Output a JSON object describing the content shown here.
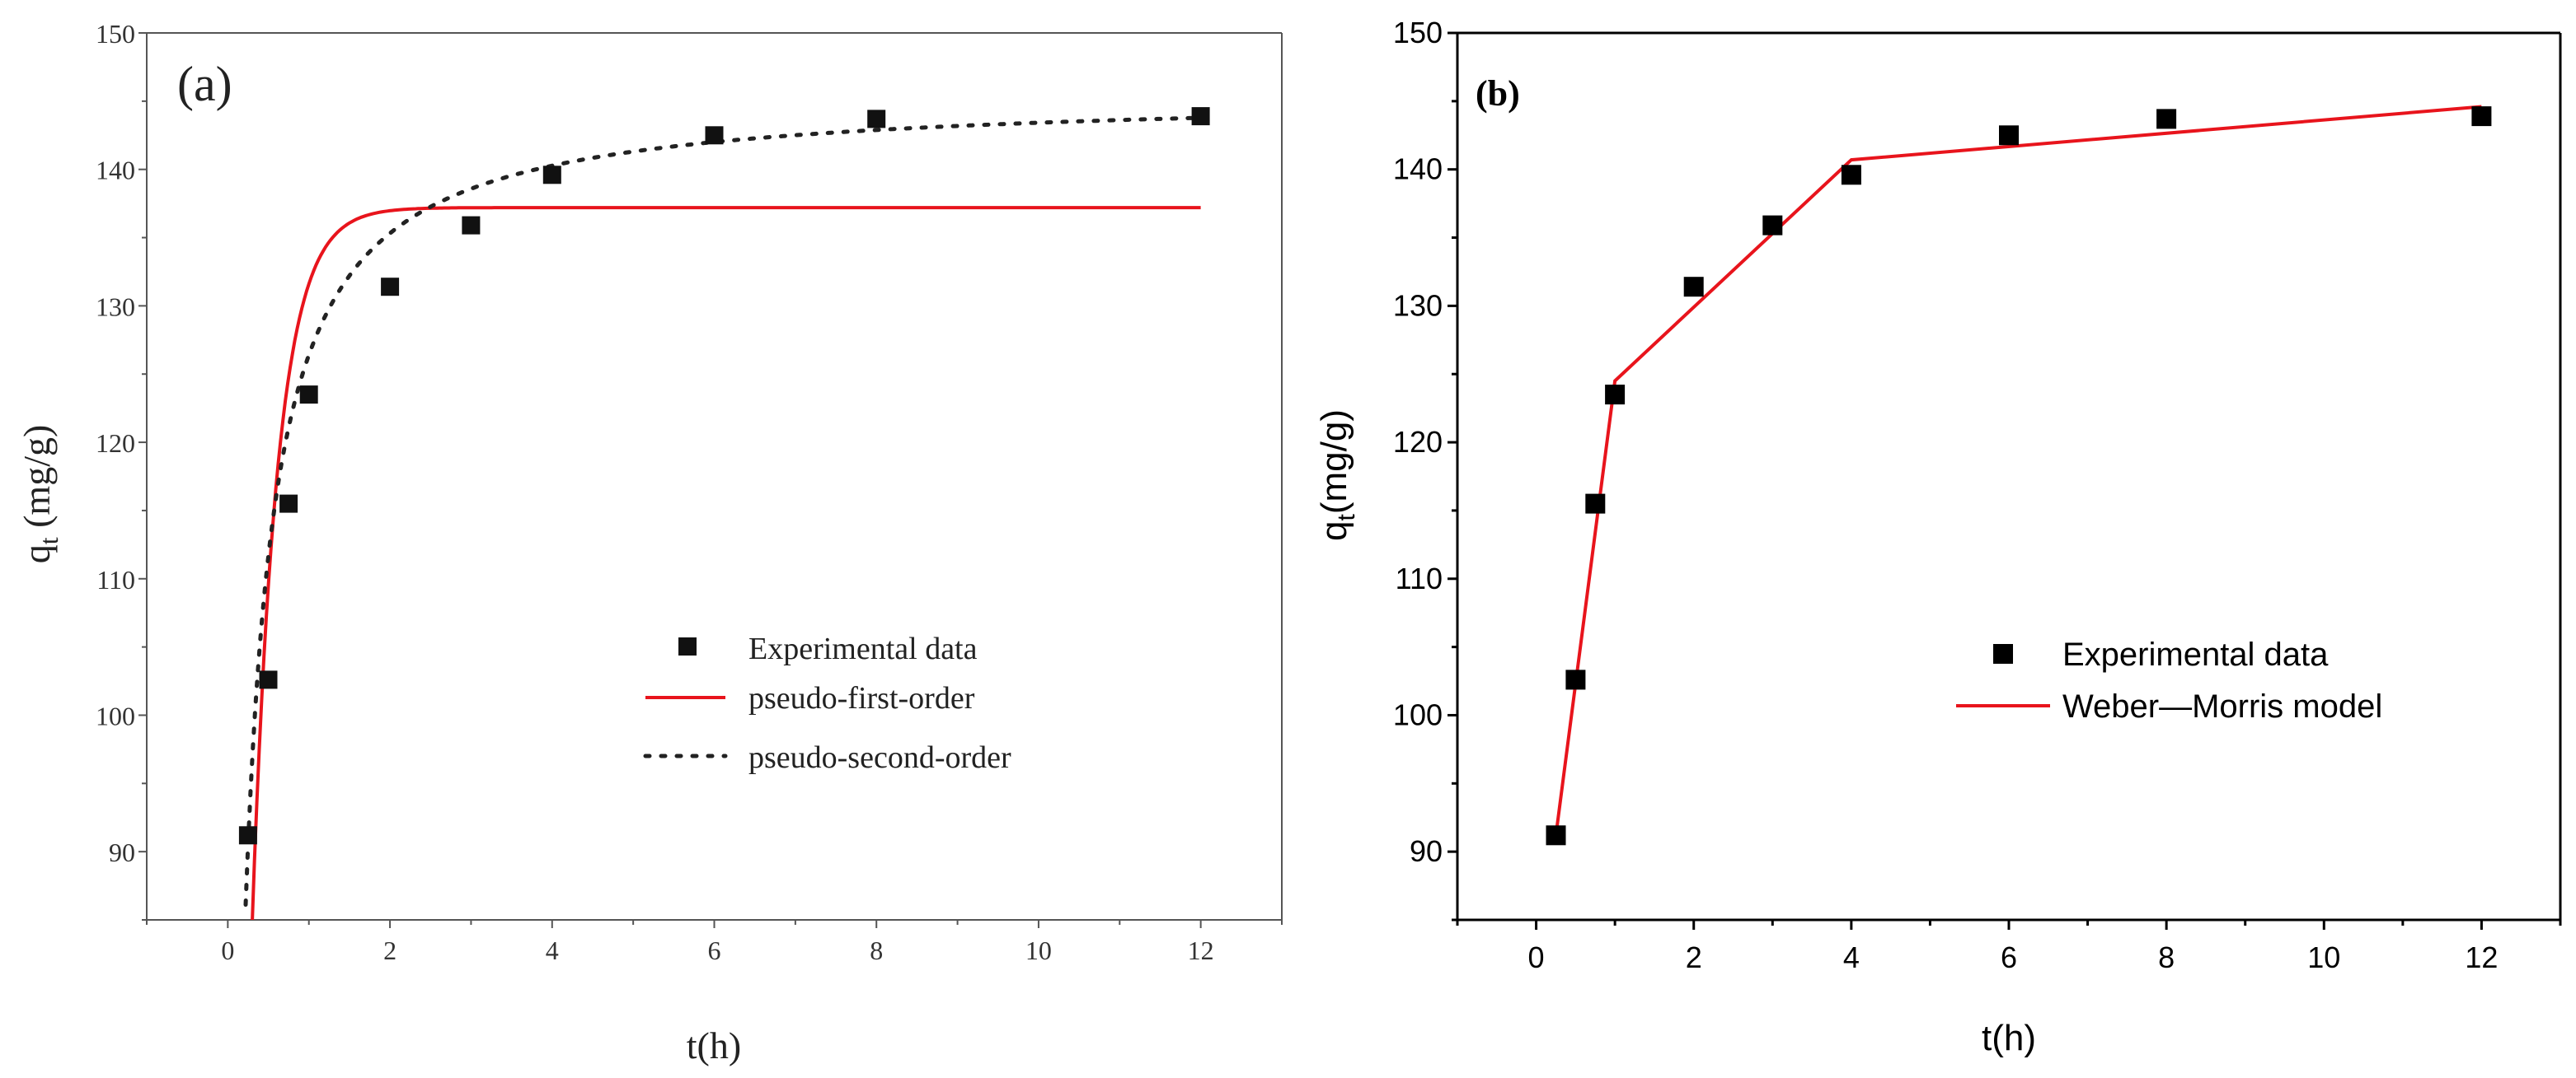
{
  "chart_data": [
    {
      "type": "scatter",
      "panel_label": "(a)",
      "xlabel": "t(h)",
      "ylabel": "q",
      "ylabel_sub": "t",
      "ylabel_unit": " (mg/g)",
      "xlim": [
        -1,
        13
      ],
      "ylim": [
        85,
        150
      ],
      "xticks": [
        0,
        2,
        4,
        6,
        8,
        10,
        12
      ],
      "yticks": [
        90,
        100,
        110,
        120,
        130,
        140,
        150
      ],
      "legend_position": "center-right",
      "experimental": {
        "name": "Experimental data",
        "x": [
          0.25,
          0.5,
          0.75,
          1,
          2,
          3,
          4,
          6,
          8,
          12
        ],
        "y": [
          91.2,
          102.6,
          115.5,
          123.5,
          131.4,
          135.9,
          139.6,
          142.5,
          143.7,
          143.9
        ]
      },
      "pfo": {
        "name": "pseudo-first-order",
        "color": "#e8141c",
        "qe": 137.2,
        "k": 3.2,
        "x_start": 0.3,
        "x_end": 12
      },
      "pso": {
        "name": "pseudo-second-order",
        "color": "#222222",
        "qe": 145.6,
        "k": 0.0452,
        "x_start": 0.22,
        "x_end": 12
      }
    },
    {
      "type": "line",
      "panel_label": "(b)",
      "xlabel": "t(h)",
      "ylabel": "q",
      "ylabel_sub": "t",
      "ylabel_unit": "(mg/g)",
      "xlim": [
        -1,
        13
      ],
      "ylim": [
        85,
        150
      ],
      "xticks": [
        0,
        2,
        4,
        6,
        8,
        10,
        12
      ],
      "yticks": [
        90,
        100,
        110,
        120,
        130,
        140,
        150
      ],
      "legend_position": "center-right",
      "experimental": {
        "name": "Experimental data",
        "x": [
          0.25,
          0.5,
          0.75,
          1,
          2,
          3,
          4,
          6,
          8,
          12
        ],
        "y": [
          91.2,
          102.6,
          115.5,
          123.5,
          131.4,
          135.9,
          139.6,
          142.5,
          143.7,
          143.9
        ]
      },
      "model": {
        "name": "Weber—Morris model",
        "color": "#e8141c",
        "x": [
          0.25,
          1,
          4,
          12
        ],
        "y": [
          91.2,
          124.5,
          140.7,
          144.6
        ]
      }
    }
  ]
}
